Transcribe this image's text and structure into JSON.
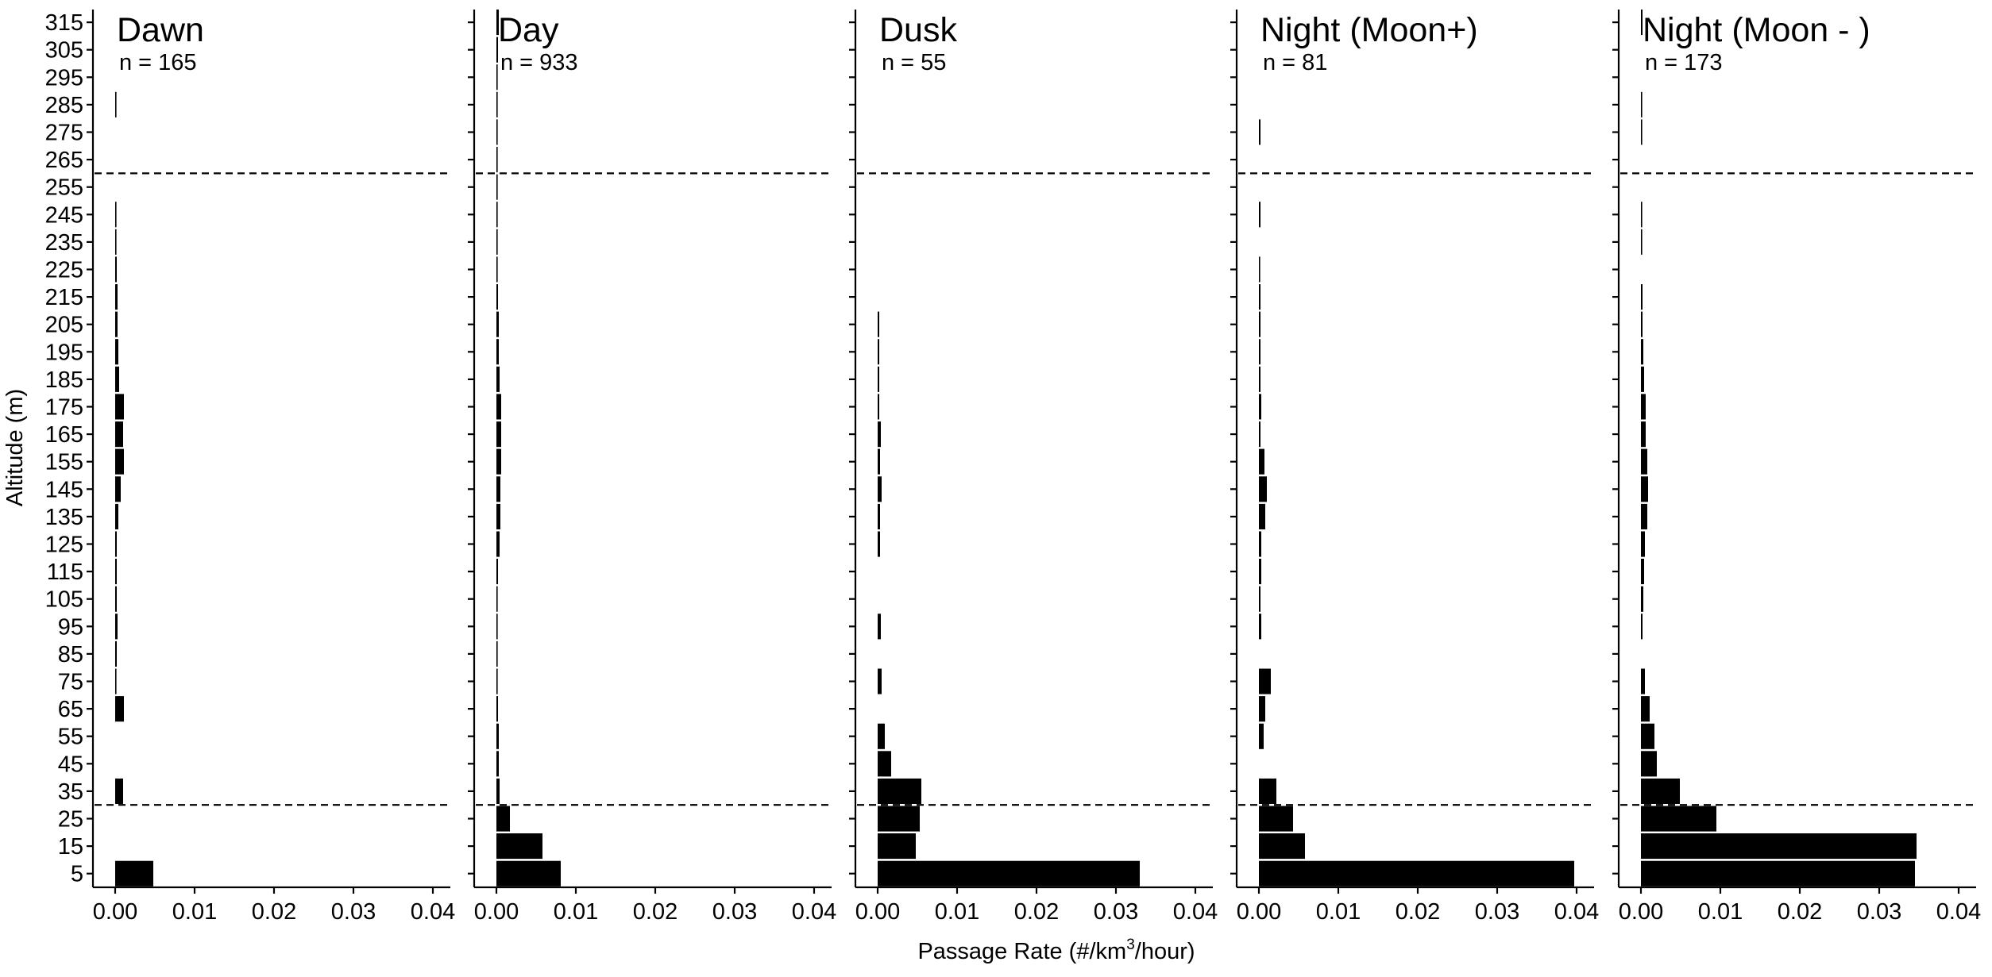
{
  "chart_data": {
    "type": "bar",
    "orientation": "horizontal",
    "facet": "panels",
    "xlabel": "Passage Rate (#/km3/hour)",
    "xlabel_parts": {
      "pre": "Passage Rate (#/km",
      "sup": "3",
      "post": "/hour)"
    },
    "ylabel": "Altitude (m)",
    "xlim": [
      0,
      0.04
    ],
    "xticks": [
      0.0,
      0.01,
      0.02,
      0.03,
      0.04
    ],
    "xtick_labels": [
      "0.00",
      "0.01",
      "0.02",
      "0.03",
      "0.04"
    ],
    "ylim": [
      0,
      320
    ],
    "categories": [
      5,
      15,
      25,
      35,
      45,
      55,
      65,
      75,
      85,
      95,
      105,
      115,
      125,
      135,
      145,
      155,
      165,
      175,
      185,
      195,
      205,
      215,
      225,
      235,
      245,
      255,
      265,
      275,
      285,
      295,
      305,
      315
    ],
    "category_labels": [
      "5",
      "15",
      "25",
      "35",
      "45",
      "55",
      "65",
      "75",
      "85",
      "95",
      "105",
      "115",
      "125",
      "135",
      "145",
      "155",
      "165",
      "175",
      "185",
      "195",
      "205",
      "215",
      "225",
      "235",
      "245",
      "255",
      "265",
      "275",
      "285",
      "295",
      "305",
      "315"
    ],
    "reference_lines": [
      30,
      260
    ],
    "reference_line_style": "dashed",
    "bar_color": "#000000",
    "grid": false,
    "legend": "none",
    "panels": [
      {
        "title": "Dawn",
        "n_label": "n = 165",
        "values": [
          0.0048,
          0,
          0,
          0.001,
          0,
          0,
          0.0011,
          0.0001,
          0.0002,
          0.0003,
          0.0002,
          0.0002,
          0.0002,
          0.0004,
          0.0007,
          0.0011,
          0.001,
          0.0011,
          0.0005,
          0.0004,
          0.0003,
          0.0003,
          0.0002,
          0.0001,
          0.0001,
          0,
          0,
          0,
          0.0001,
          0,
          0,
          0
        ]
      },
      {
        "title": "Day",
        "n_label": "n = 933",
        "values": [
          0.0081,
          0.0058,
          0.0017,
          0.0004,
          0.0003,
          0.0003,
          0.0002,
          0.0001,
          0.0001,
          0.0001,
          0.0001,
          0.0002,
          0.0004,
          0.0005,
          0.0005,
          0.0006,
          0.0006,
          0.0006,
          0.0004,
          0.0003,
          0.0003,
          0.0002,
          0.0001,
          0.0001,
          0.0001,
          0.0001,
          0.0001,
          0.0001,
          0.0001,
          0.0001,
          0.0002,
          0.0003
        ]
      },
      {
        "title": "Dusk",
        "n_label": "n = 55",
        "values": [
          0.033,
          0.0048,
          0.0053,
          0.0055,
          0.0017,
          0.0009,
          0,
          0.0005,
          0,
          0.0004,
          0,
          0,
          0.0003,
          0.0003,
          0.0005,
          0.0003,
          0.0004,
          0.0002,
          0.0002,
          0.0002,
          0.0002,
          0,
          0,
          0,
          0,
          0,
          0,
          0,
          0,
          0,
          0,
          0
        ]
      },
      {
        "title": "Night (Moon+)",
        "n_label": "n = 81",
        "values": [
          0.0397,
          0.0058,
          0.0043,
          0.0022,
          0,
          0.0006,
          0.0008,
          0.0015,
          0,
          0.0003,
          0.0002,
          0.0003,
          0.0003,
          0.0008,
          0.001,
          0.0007,
          0.0002,
          0.0003,
          0.0002,
          0.0002,
          0.0002,
          0.0002,
          0.0001,
          0,
          0.0002,
          0,
          0,
          0.0002,
          0,
          0,
          0,
          0
        ]
      },
      {
        "title": "Night (Moon - )",
        "n_label": "n = 173",
        "values": [
          0.0345,
          0.0347,
          0.0095,
          0.0049,
          0.002,
          0.0017,
          0.0011,
          0.0005,
          0,
          0.0002,
          0.0003,
          0.0004,
          0.0005,
          0.0008,
          0.0009,
          0.0008,
          0.0006,
          0.0006,
          0.0004,
          0.0003,
          0.0002,
          0.0002,
          0,
          0.0001,
          0.0001,
          0,
          0,
          0.0001,
          0.0001,
          0,
          0,
          0.0002
        ]
      }
    ]
  }
}
